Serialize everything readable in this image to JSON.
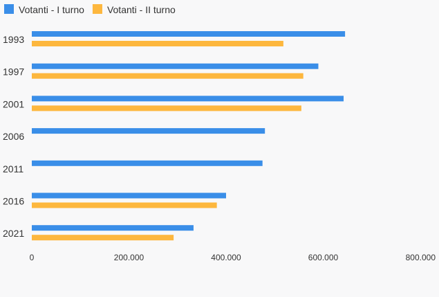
{
  "chart_data": {
    "type": "bar",
    "orientation": "horizontal",
    "categories": [
      "1993",
      "1997",
      "2001",
      "2006",
      "2011",
      "2016",
      "2021"
    ],
    "series": [
      {
        "name": "Votanti - I turno",
        "color": "#3a8ee8",
        "values": [
          645000,
          590000,
          642000,
          480000,
          475000,
          400000,
          333000
        ]
      },
      {
        "name": "Votanti - II turno",
        "color": "#fdb73e",
        "values": [
          518000,
          559000,
          555000,
          null,
          null,
          381000,
          292000
        ]
      }
    ],
    "xlim": [
      0,
      800000
    ],
    "xticks": [
      0,
      200000,
      400000,
      600000,
      800000
    ],
    "xtick_labels": [
      "0",
      "200.000",
      "400.000",
      "600.000",
      "800.000"
    ],
    "legend": "top-left",
    "grid": false,
    "title": "",
    "xlabel": "",
    "ylabel": ""
  }
}
